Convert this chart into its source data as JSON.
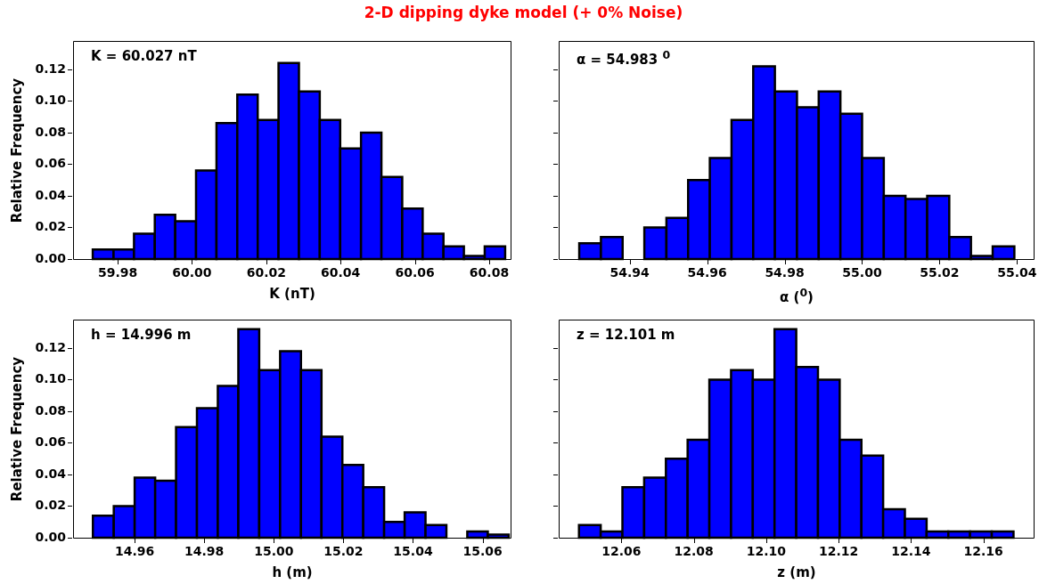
{
  "chart_data": [
    {
      "type": "histogram",
      "title": "2-D dipping dyke model (+ 0% Noise)",
      "xlabel": "K (nT)",
      "ylabel": "Relative Frequency",
      "annotations": [
        "K = 60.027 nT"
      ],
      "color": "#0000ff",
      "bins": [
        59.9733,
        59.9789,
        59.9844,
        59.99,
        59.9955,
        60.0011,
        60.0066,
        60.0122,
        60.0177,
        60.0233,
        60.0288,
        60.0344,
        60.0399,
        60.0455,
        60.051,
        60.0566,
        60.0621,
        60.0677,
        60.0732,
        60.0788,
        60.0843
      ],
      "values": [
        0.006,
        0.006,
        0.016,
        0.028,
        0.024,
        0.056,
        0.086,
        0.104,
        0.088,
        0.124,
        0.106,
        0.088,
        0.07,
        0.08,
        0.052,
        0.032,
        0.016,
        0.008,
        0.002,
        0.008
      ],
      "xlim": [
        59.968,
        60.086
      ],
      "xticks": [
        {
          "value": 59.98,
          "label": "59.98"
        },
        {
          "value": 60,
          "label": "60.00"
        },
        {
          "value": 60.02,
          "label": "60.02"
        },
        {
          "value": 60.04,
          "label": "60.04"
        },
        {
          "value": 60.06,
          "label": "60.06"
        },
        {
          "value": 60.08,
          "label": "60.08"
        }
      ],
      "ylim": [
        0,
        0.138
      ],
      "yticks": [
        {
          "value": 0,
          "label": "0.00"
        },
        {
          "value": 0.02,
          "label": "0.02"
        },
        {
          "value": 0.04,
          "label": "0.04"
        },
        {
          "value": 0.06,
          "label": "0.06"
        },
        {
          "value": 0.08,
          "label": "0.08"
        },
        {
          "value": 0.1,
          "label": "0.10"
        },
        {
          "value": 0.12,
          "label": "0.12"
        }
      ],
      "grid": false
    },
    {
      "type": "histogram",
      "xlabel": "α ($^{0}$)",
      "annotations": [
        "α = 54.983 $^{0}$"
      ],
      "color": "#0000ff",
      "bins": [
        54.927,
        54.9326,
        54.9382,
        54.9438,
        54.9495,
        54.9551,
        54.9607,
        54.9663,
        54.9719,
        54.9775,
        54.9832,
        54.9888,
        54.9944,
        55.0,
        55.0056,
        55.0112,
        55.0168,
        55.0225,
        55.0281,
        55.0337,
        55.0393
      ],
      "values": [
        0.01,
        0.014,
        0,
        0.02,
        0.026,
        0.05,
        0.064,
        0.088,
        0.122,
        0.106,
        0.096,
        0.106,
        0.092,
        0.064,
        0.04,
        0.038,
        0.04,
        0.014,
        0.002,
        0.008
      ],
      "xlim": [
        54.9217,
        55.0445
      ],
      "xticks": [
        {
          "value": 54.94,
          "label": "54.94"
        },
        {
          "value": 54.96,
          "label": "54.96"
        },
        {
          "value": 54.98,
          "label": "54.98"
        },
        {
          "value": 55,
          "label": "55.00"
        },
        {
          "value": 55.02,
          "label": "55.02"
        },
        {
          "value": 55.04,
          "label": "55.04"
        }
      ],
      "ylim": [
        0,
        0.138
      ],
      "yticks": [
        {
          "value": 0,
          "label": null
        },
        {
          "value": 0.02,
          "label": null
        },
        {
          "value": 0.04,
          "label": null
        },
        {
          "value": 0.06,
          "label": null
        },
        {
          "value": 0.08,
          "label": null
        },
        {
          "value": 0.1,
          "label": null
        },
        {
          "value": 0.12,
          "label": null
        }
      ],
      "tick_labels": "x",
      "grid": false
    },
    {
      "type": "histogram",
      "xlabel": "h (m)",
      "ylabel": "Relative Frequency",
      "annotations": [
        "h = 14.996 m"
      ],
      "color": "#0000ff",
      "bins": [
        14.948,
        14.954,
        14.96,
        14.9659,
        14.9719,
        14.9779,
        14.9839,
        14.9898,
        14.9958,
        15.0018,
        15.0078,
        15.0137,
        15.0197,
        15.0257,
        15.0317,
        15.0376,
        15.0436,
        15.0496,
        15.0556,
        15.0615,
        15.0675
      ],
      "values": [
        0.014,
        0.02,
        0.038,
        0.036,
        0.07,
        0.082,
        0.096,
        0.132,
        0.106,
        0.118,
        0.106,
        0.064,
        0.046,
        0.032,
        0.01,
        0.016,
        0.008,
        0,
        0.004,
        0.002
      ],
      "xlim": [
        14.9423,
        15.0683
      ],
      "xticks": [
        {
          "value": 14.96,
          "label": "14.96"
        },
        {
          "value": 14.98,
          "label": "14.98"
        },
        {
          "value": 15,
          "label": "15.00"
        },
        {
          "value": 15.02,
          "label": "15.02"
        },
        {
          "value": 15.04,
          "label": "15.04"
        },
        {
          "value": 15.06,
          "label": "15.06"
        }
      ],
      "ylim": [
        0,
        0.138
      ],
      "yticks": [
        {
          "value": 0,
          "label": "0.00"
        },
        {
          "value": 0.02,
          "label": "0.02"
        },
        {
          "value": 0.04,
          "label": "0.04"
        },
        {
          "value": 0.06,
          "label": "0.06"
        },
        {
          "value": 0.08,
          "label": "0.08"
        },
        {
          "value": 0.1,
          "label": "0.10"
        },
        {
          "value": 0.12,
          "label": "0.12"
        }
      ],
      "grid": false
    },
    {
      "type": "histogram",
      "xlabel": "z (m)",
      "annotations": [
        "z = 12.101 m"
      ],
      "color": "#0000ff",
      "bins": [
        12.0483,
        12.0543,
        12.0603,
        12.0663,
        12.0723,
        12.0783,
        12.0843,
        12.0903,
        12.0963,
        12.1023,
        12.1083,
        12.1143,
        12.1203,
        12.1263,
        12.1323,
        12.1383,
        12.1443,
        12.1503,
        12.1563,
        12.1623,
        12.1683
      ],
      "values": [
        0.008,
        0.004,
        0.032,
        0.038,
        0.05,
        0.062,
        0.1,
        0.106,
        0.1,
        0.132,
        0.108,
        0.1,
        0.062,
        0.052,
        0.018,
        0.012,
        0.004,
        0.004,
        0.004,
        0.004
      ],
      "xlim": [
        12.0427,
        12.1741
      ],
      "xticks": [
        {
          "value": 12.06,
          "label": "12.06"
        },
        {
          "value": 12.08,
          "label": "12.08"
        },
        {
          "value": 12.1,
          "label": "12.10"
        },
        {
          "value": 12.12,
          "label": "12.12"
        },
        {
          "value": 12.14,
          "label": "12.14"
        },
        {
          "value": 12.16,
          "label": "12.16"
        }
      ],
      "ylim": [
        0,
        0.138
      ],
      "yticks": [
        {
          "value": 0,
          "label": null
        },
        {
          "value": 0.02,
          "label": null
        },
        {
          "value": 0.04,
          "label": null
        },
        {
          "value": 0.06,
          "label": null
        },
        {
          "value": 0.08,
          "label": null
        },
        {
          "value": 0.1,
          "label": null
        },
        {
          "value": 0.12,
          "label": null
        }
      ],
      "tick_labels": "x",
      "grid": false
    }
  ]
}
